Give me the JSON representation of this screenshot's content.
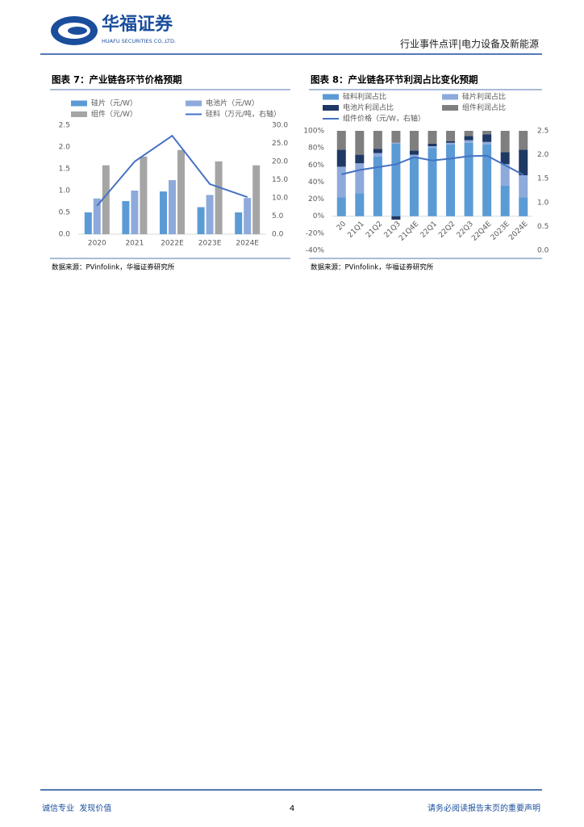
{
  "header": {
    "logo_cn": "华福证券",
    "logo_en": "HUAFU SECURITIES CO.,LTD.",
    "section": "行业事件点评|电力设备及新能源"
  },
  "chart_data": [
    {
      "type": "bar",
      "title": "图表 7：产业链各环节价格预期",
      "source": "数据来源：PVinfolink，华福证券研究所",
      "categories": [
        "2020",
        "2021",
        "2022E",
        "2023E",
        "2024E"
      ],
      "series": [
        {
          "name": "硅片（元/W）",
          "color": "#5b9bd5",
          "values": [
            0.5,
            0.76,
            0.98,
            0.62,
            0.5
          ]
        },
        {
          "name": "电池片（元/W）",
          "color": "#8eaadb",
          "values": [
            0.82,
            1.0,
            1.24,
            0.9,
            0.83
          ]
        },
        {
          "name": "组件（元/W）",
          "color": "#a5a5a5",
          "values": [
            1.58,
            1.78,
            1.93,
            1.67,
            1.58
          ]
        },
        {
          "name": "硅料（万元/吨，右轴）",
          "color": "#4472c4",
          "type": "line",
          "axis": "y2",
          "values": [
            7.8,
            20,
            27.1,
            13.8,
            10.2
          ]
        }
      ],
      "ylim": [
        0,
        2.5
      ],
      "yticks": [
        {
          "value": 0,
          "label": "0.0"
        },
        {
          "value": 0.5,
          "label": "0.5"
        },
        {
          "value": 1,
          "label": "1.0"
        },
        {
          "value": 1.5,
          "label": "1.5"
        },
        {
          "value": 2,
          "label": "2.0"
        },
        {
          "value": 2.5,
          "label": "2.5"
        }
      ],
      "y2lim": [
        0,
        30
      ],
      "y2ticks": [
        {
          "value": 0,
          "label": "0.0"
        },
        {
          "value": 5,
          "label": "5.0"
        },
        {
          "value": 10,
          "label": "10.0"
        },
        {
          "value": 15,
          "label": "15.0"
        },
        {
          "value": 20,
          "label": "20.0"
        },
        {
          "value": 25,
          "label": "25.0"
        },
        {
          "value": 30,
          "label": "30.0"
        }
      ]
    },
    {
      "type": "stacked_bar",
      "title": "图表 8：产业链各环节利润占比变化预期",
      "source": "数据来源：PVinfolink，华福证券研究所",
      "categories": [
        "20",
        "21Q1",
        "21Q2",
        "21Q3",
        "21Q4E",
        "22Q1",
        "22Q2",
        "22Q3",
        "22Q4E",
        "2023E",
        "2024E"
      ],
      "series": [
        {
          "name": "硅料利润占比",
          "color": "#5b9bd5",
          "values": [
            22,
            27,
            70,
            85,
            70,
            80,
            84,
            86,
            84,
            36,
            22
          ]
        },
        {
          "name": "硅片利润占比",
          "color": "#8eaadb",
          "values": [
            36,
            35,
            4,
            1,
            2,
            2,
            2,
            3,
            3,
            25,
            26
          ]
        },
        {
          "name": "电池片利润占比",
          "color": "#1f3864",
          "values": [
            20,
            10,
            5,
            -4,
            5,
            3,
            2,
            5,
            9,
            14,
            30
          ]
        },
        {
          "name": "组件利润占比",
          "color": "#7f7f7f",
          "values": [
            22,
            28,
            21,
            14,
            23,
            15,
            12,
            6,
            4,
            25,
            22
          ]
        },
        {
          "name": "组件价格（元/W，右轴）",
          "color": "#4472c4",
          "type": "line",
          "axis": "y2",
          "values": [
            1.59,
            1.68,
            1.74,
            1.8,
            1.95,
            1.88,
            1.92,
            1.97,
            1.98,
            1.78,
            1.58
          ]
        }
      ],
      "ylim": [
        -40,
        100
      ],
      "yticks": [
        {
          "value": -40,
          "label": "-40%"
        },
        {
          "value": -20,
          "label": "-20%"
        },
        {
          "value": 0,
          "label": "0%"
        },
        {
          "value": 20,
          "label": "20%"
        },
        {
          "value": 40,
          "label": "40%"
        },
        {
          "value": 60,
          "label": "60%"
        },
        {
          "value": 80,
          "label": "80%"
        },
        {
          "value": 100,
          "label": "100%"
        }
      ],
      "y2lim": [
        0,
        2.5
      ],
      "y2ticks": [
        {
          "value": 0,
          "label": "0.0"
        },
        {
          "value": 0.5,
          "label": "0.5"
        },
        {
          "value": 1,
          "label": "1.0"
        },
        {
          "value": 1.5,
          "label": "1.5"
        },
        {
          "value": 2,
          "label": "2.0"
        },
        {
          "value": 2.5,
          "label": "2.5"
        }
      ]
    }
  ],
  "footer": {
    "left": "诚信专业  发现价值",
    "page": 4,
    "right": "请务必阅读报告末页的重要声明"
  }
}
